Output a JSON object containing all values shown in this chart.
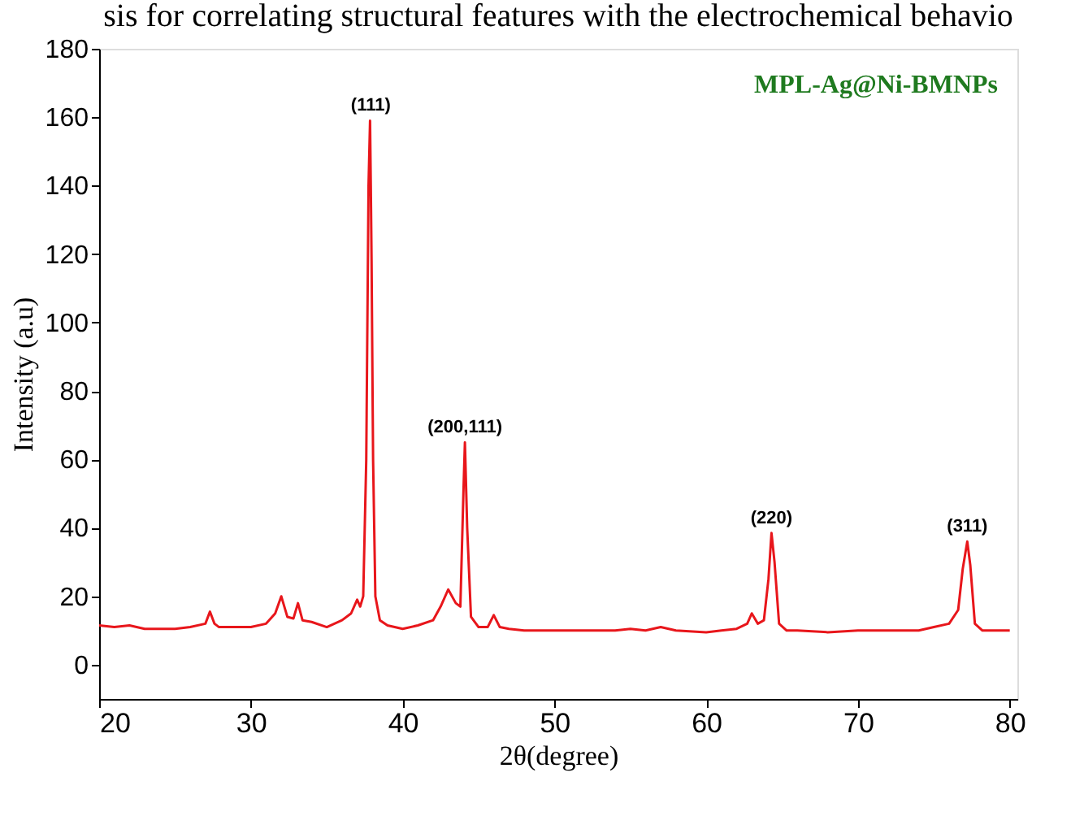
{
  "chart_data": {
    "type": "line",
    "title": "sis for correlating structural features with the electrochemical behavio",
    "xlabel": "2θ(degree)",
    "ylabel": "Intensity (a.u)",
    "xlim": [
      20,
      80.5
    ],
    "ylim": [
      -10,
      180
    ],
    "xticks": [
      20,
      30,
      40,
      50,
      60,
      70,
      80
    ],
    "yticks": [
      0,
      20,
      40,
      60,
      80,
      100,
      120,
      140,
      160,
      180
    ],
    "grid": false,
    "marker": "none",
    "line_style": "solid",
    "series": [
      {
        "color": "#e8161b",
        "x": [
          20,
          21,
          22,
          23,
          24,
          25,
          26,
          27,
          27.3,
          27.6,
          27.9,
          28.3,
          29,
          30,
          31,
          31.6,
          32,
          32.4,
          32.8,
          33.1,
          33.4,
          34,
          35,
          36,
          36.6,
          37,
          37.2,
          37.4,
          37.6,
          37.75,
          37.85,
          37.9,
          37.95,
          38.05,
          38.2,
          38.5,
          39,
          40,
          41,
          42,
          42.5,
          43,
          43.5,
          43.8,
          44,
          44.1,
          44.25,
          44.5,
          45,
          45.6,
          46,
          46.4,
          47,
          48,
          50,
          52,
          54,
          55,
          56,
          57,
          58,
          60,
          61,
          62,
          62.7,
          63,
          63.4,
          63.8,
          64.1,
          64.3,
          64.5,
          64.8,
          65.3,
          66,
          68,
          70,
          72,
          74,
          75,
          76,
          76.6,
          76.9,
          77.2,
          77.4,
          77.7,
          78.2,
          79,
          80
        ],
        "values": [
          11.5,
          11,
          11.5,
          10.5,
          10.5,
          10.5,
          11,
          12,
          15.5,
          12,
          11,
          11,
          11,
          11,
          12,
          15,
          20,
          14,
          13.5,
          18,
          13,
          12.5,
          11,
          13,
          15,
          19,
          17,
          20,
          60,
          140,
          159,
          140,
          118,
          60,
          20,
          13,
          11.5,
          10.5,
          11.5,
          13,
          17,
          22,
          18,
          17,
          50,
          65,
          40,
          14,
          11,
          11,
          14.5,
          11,
          10.5,
          10,
          10,
          10,
          10,
          10.5,
          10,
          11,
          10,
          9.5,
          10,
          10.5,
          12,
          15,
          12,
          13,
          25,
          38.5,
          30,
          12,
          10,
          10,
          9.5,
          10,
          10,
          10,
          11,
          12,
          16,
          28,
          36,
          29,
          12,
          10,
          10,
          10
        ]
      }
    ],
    "annotations": [
      {
        "text": "(111)",
        "x": 37.9,
        "y": 159
      },
      {
        "text": "(200,111)",
        "x": 44.1,
        "y": 65
      },
      {
        "text": "(220)",
        "x": 64.3,
        "y": 38.5
      },
      {
        "text": "(311)",
        "x": 77.2,
        "y": 36
      },
      "MPL-Ag@Ni-BMNPs"
    ]
  }
}
